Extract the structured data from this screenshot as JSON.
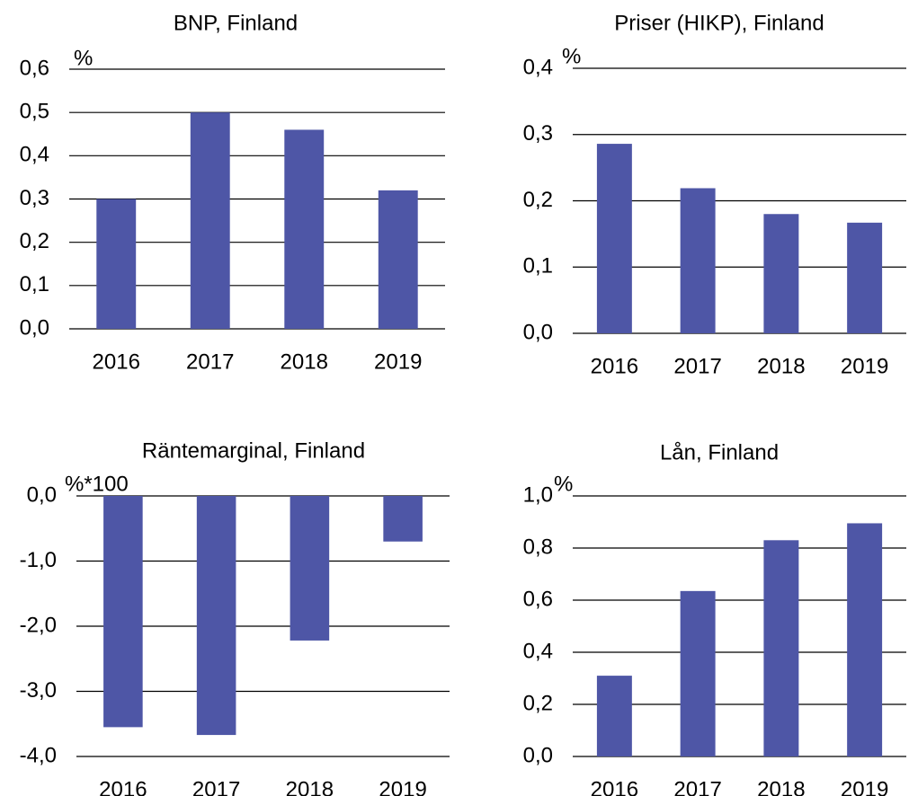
{
  "chart_data": [
    {
      "type": "bar",
      "title": "BNP, Finland",
      "unit": "%",
      "categories": [
        "2016",
        "2017",
        "2018",
        "2019"
      ],
      "values": [
        0.3,
        0.5,
        0.46,
        0.32
      ],
      "color": "#4e56a6",
      "ylim": [
        0,
        0.6
      ],
      "yticks": [
        {
          "value": 0,
          "label": "0,0"
        },
        {
          "value": 0.1,
          "label": "0,1"
        },
        {
          "value": 0.2,
          "label": "0,2"
        },
        {
          "value": 0.3,
          "label": "0,3"
        },
        {
          "value": 0.4,
          "label": "0,4"
        },
        {
          "value": 0.5,
          "label": "0,5"
        },
        {
          "value": 0.6,
          "label": "0,6"
        }
      ],
      "grid": true
    },
    {
      "type": "bar",
      "title": "Priser (HIKP), Finland",
      "unit": "%",
      "categories": [
        "2016",
        "2017",
        "2018",
        "2019"
      ],
      "values": [
        0.286,
        0.219,
        0.18,
        0.167
      ],
      "color": "#4e56a6",
      "ylim": [
        0,
        0.4
      ],
      "yticks": [
        {
          "value": 0,
          "label": "0,0"
        },
        {
          "value": 0.1,
          "label": "0,1"
        },
        {
          "value": 0.2,
          "label": "0,2"
        },
        {
          "value": 0.3,
          "label": "0,3"
        },
        {
          "value": 0.4,
          "label": "0,4"
        }
      ],
      "grid": true
    },
    {
      "type": "bar",
      "title": "Räntemarginal, Finland",
      "unit": "%*100",
      "categories": [
        "2016",
        "2017",
        "2018",
        "2019"
      ],
      "values": [
        -3.55,
        -3.67,
        -2.22,
        -0.7
      ],
      "color": "#4e56a6",
      "ylim": [
        -4,
        0
      ],
      "yticks": [
        {
          "value": 0,
          "label": "0,0"
        },
        {
          "value": -1,
          "label": "-1,0"
        },
        {
          "value": -2,
          "label": "-2,0"
        },
        {
          "value": -3,
          "label": "-3,0"
        },
        {
          "value": -4,
          "label": "-4,0"
        }
      ],
      "grid": true
    },
    {
      "type": "bar",
      "title": "Lån, Finland",
      "unit": "%",
      "categories": [
        "2016",
        "2017",
        "2018",
        "2019"
      ],
      "values": [
        0.31,
        0.635,
        0.83,
        0.895
      ],
      "color": "#4e56a6",
      "ylim": [
        0,
        1
      ],
      "yticks": [
        {
          "value": 0,
          "label": "0,0"
        },
        {
          "value": 0.2,
          "label": "0,2"
        },
        {
          "value": 0.4,
          "label": "0,4"
        },
        {
          "value": 0.6,
          "label": "0,6"
        },
        {
          "value": 0.8,
          "label": "0,8"
        },
        {
          "value": 1,
          "label": "1,0"
        }
      ],
      "grid": true
    }
  ]
}
